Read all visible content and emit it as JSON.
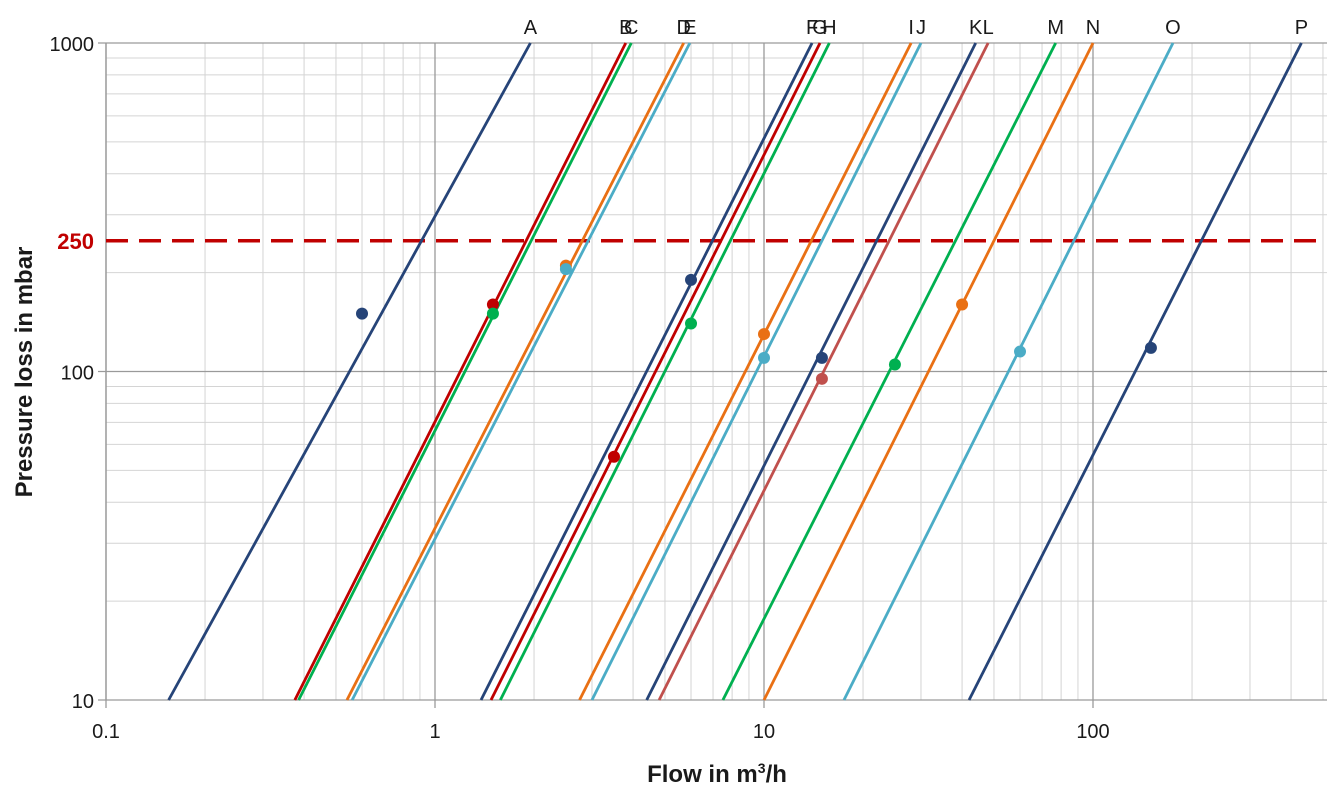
{
  "chart_data": {
    "type": "line",
    "xlabel_prefix": "Flow in m",
    "xlabel_sup": "3",
    "xlabel_suffix": "/h",
    "ylabel": "Pressure loss in mbar",
    "x_scale": "log",
    "y_scale": "log",
    "xlim": [
      0.1,
      500
    ],
    "ylim": [
      10,
      1000
    ],
    "x_ticks": [
      {
        "value": 0.1,
        "label": "0.1"
      },
      {
        "value": 1,
        "label": "1"
      },
      {
        "value": 10,
        "label": "10"
      },
      {
        "value": 100,
        "label": "100"
      }
    ],
    "y_ticks": [
      {
        "value": 10,
        "label": "10"
      },
      {
        "value": 100,
        "label": "100"
      },
      {
        "value": 1000,
        "label": "1000"
      }
    ],
    "grid": true,
    "reference_line": {
      "y": 250,
      "label": "250",
      "color": "#c00000",
      "style": "dashed"
    },
    "series": [
      {
        "name": "A",
        "color": "#264478",
        "x": [
          0.155,
          1.95
        ],
        "y": [
          10,
          1000
        ],
        "marker": {
          "x": 0.6,
          "y": 150
        }
      },
      {
        "name": "B",
        "color": "#c00000",
        "x": [
          0.375,
          3.8
        ],
        "y": [
          10,
          1000
        ],
        "marker": {
          "x": 1.5,
          "y": 160
        }
      },
      {
        "name": "C",
        "color": "#00b050",
        "x": [
          0.385,
          3.95
        ],
        "y": [
          10,
          1000
        ],
        "marker": {
          "x": 1.5,
          "y": 150
        }
      },
      {
        "name": "D",
        "color": "#e97014",
        "x": [
          0.54,
          5.7
        ],
        "y": [
          10,
          1000
        ],
        "marker": {
          "x": 2.5,
          "y": 210
        }
      },
      {
        "name": "E",
        "color": "#4bacc6",
        "x": [
          0.56,
          5.95
        ],
        "y": [
          10,
          1000
        ],
        "marker": {
          "x": 2.5,
          "y": 205
        }
      },
      {
        "name": "F",
        "color": "#264478",
        "x": [
          1.38,
          14.0
        ],
        "y": [
          10,
          1000
        ],
        "marker": {
          "x": 6.0,
          "y": 190
        }
      },
      {
        "name": "G",
        "color": "#c00000",
        "x": [
          1.48,
          14.8
        ],
        "y": [
          10,
          1000
        ],
        "marker": {
          "x": 3.5,
          "y": 55
        }
      },
      {
        "name": "H",
        "color": "#00b050",
        "x": [
          1.58,
          15.8
        ],
        "y": [
          10,
          1000
        ],
        "marker": {
          "x": 6.0,
          "y": 140
        }
      },
      {
        "name": "I",
        "color": "#e97014",
        "x": [
          2.75,
          28.0
        ],
        "y": [
          10,
          1000
        ],
        "marker": {
          "x": 10.0,
          "y": 130
        }
      },
      {
        "name": "J",
        "color": "#4bacc6",
        "x": [
          3.0,
          30.0
        ],
        "y": [
          10,
          1000
        ],
        "marker": {
          "x": 10.0,
          "y": 110
        }
      },
      {
        "name": "K",
        "color": "#264478",
        "x": [
          4.4,
          44.0
        ],
        "y": [
          10,
          1000
        ],
        "marker": {
          "x": 15.0,
          "y": 110
        }
      },
      {
        "name": "L",
        "color": "#c0504d",
        "x": [
          4.8,
          48.0
        ],
        "y": [
          10,
          1000
        ],
        "marker": {
          "x": 15.0,
          "y": 95
        }
      },
      {
        "name": "M",
        "color": "#00b050",
        "x": [
          7.5,
          77.0
        ],
        "y": [
          10,
          1000
        ],
        "marker": {
          "x": 25.0,
          "y": 105
        }
      },
      {
        "name": "N",
        "color": "#e97014",
        "x": [
          10.0,
          100.0
        ],
        "y": [
          10,
          1000
        ],
        "marker": {
          "x": 40.0,
          "y": 160
        }
      },
      {
        "name": "O",
        "color": "#4bacc6",
        "x": [
          17.5,
          175.0
        ],
        "y": [
          10,
          1000
        ],
        "marker": {
          "x": 60.0,
          "y": 115
        }
      },
      {
        "name": "P",
        "color": "#264478",
        "x": [
          42.0,
          430.0
        ],
        "y": [
          10,
          1000
        ],
        "marker": {
          "x": 150.0,
          "y": 118
        }
      }
    ]
  }
}
